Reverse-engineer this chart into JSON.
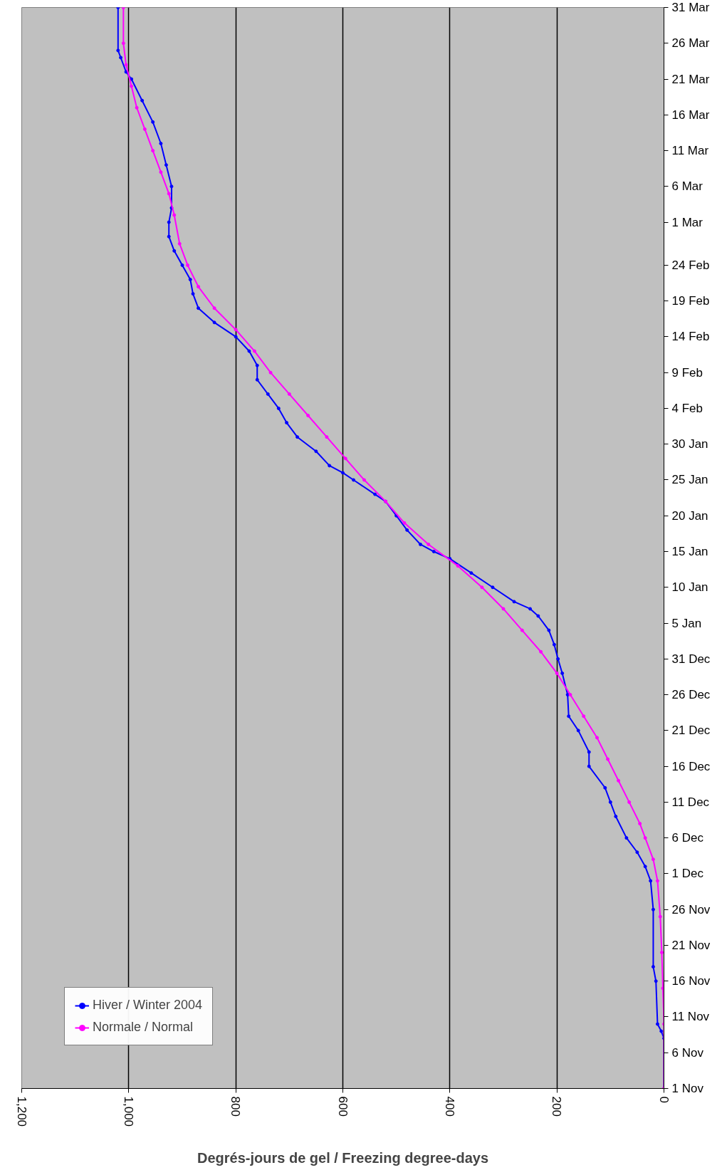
{
  "chart_data": {
    "type": "line",
    "orientation": "horizontal",
    "xlabel": "Degrés-jours de gel / Freezing degree-days",
    "xlim": [
      1200,
      0
    ],
    "xticks": [
      {
        "value": 1200,
        "label": "1,200"
      },
      {
        "value": 1000,
        "label": "1,000"
      },
      800,
      600,
      400,
      200,
      0
    ],
    "ylim": [
      "2003-11-01",
      "2004-03-31"
    ],
    "yticks": [
      {
        "value": "2003-11-01",
        "label": "1 Nov"
      },
      {
        "value": "2003-11-06",
        "label": "6 Nov"
      },
      {
        "value": "2003-11-11",
        "label": "11 Nov"
      },
      {
        "value": "2003-11-16",
        "label": "16 Nov"
      },
      {
        "value": "2003-11-21",
        "label": "21 Nov"
      },
      {
        "value": "2003-11-26",
        "label": "26 Nov"
      },
      {
        "value": "2003-12-01",
        "label": "1 Dec"
      },
      {
        "value": "2003-12-06",
        "label": "6 Dec"
      },
      {
        "value": "2003-12-11",
        "label": "11 Dec"
      },
      {
        "value": "2003-12-16",
        "label": "16 Dec"
      },
      {
        "value": "2003-12-21",
        "label": "21 Dec"
      },
      {
        "value": "2003-12-26",
        "label": "26 Dec"
      },
      {
        "value": "2003-12-31",
        "label": "31 Dec"
      },
      {
        "value": "2004-01-05",
        "label": "5 Jan"
      },
      {
        "value": "2004-01-10",
        "label": "10 Jan"
      },
      {
        "value": "2004-01-15",
        "label": "15 Jan"
      },
      {
        "value": "2004-01-20",
        "label": "20 Jan"
      },
      {
        "value": "2004-01-25",
        "label": "25 Jan"
      },
      {
        "value": "2004-01-30",
        "label": "30 Jan"
      },
      {
        "value": "2004-02-04",
        "label": "4 Feb"
      },
      {
        "value": "2004-02-09",
        "label": "9 Feb"
      },
      {
        "value": "2004-02-14",
        "label": "14 Feb"
      },
      {
        "value": "2004-02-19",
        "label": "19 Feb"
      },
      {
        "value": "2004-02-24",
        "label": "24 Feb"
      },
      {
        "value": "2004-03-01",
        "label": "1 Mar"
      },
      {
        "value": "2004-03-06",
        "label": "6 Mar"
      },
      {
        "value": "2004-03-11",
        "label": "11 Mar"
      },
      {
        "value": "2004-03-16",
        "label": "16 Mar"
      },
      {
        "value": "2004-03-21",
        "label": "21 Mar"
      },
      {
        "value": "2004-03-26",
        "label": "26 Mar"
      },
      {
        "value": "2004-03-31",
        "label": "31 Mar"
      }
    ],
    "grid": "x",
    "legend": "bottom left",
    "marker": "circle",
    "line_style": "solid",
    "series": [
      {
        "name": "Hiver / Winter 2004",
        "color": "#0000ff",
        "x": [
          "2003-11-01",
          "2003-11-08",
          "2003-11-09",
          "2003-11-10",
          "2003-11-16",
          "2003-11-18",
          "2003-11-26",
          "2003-11-30",
          "2003-12-02",
          "2003-12-04",
          "2003-12-06",
          "2003-12-09",
          "2003-12-11",
          "2003-12-13",
          "2003-12-16",
          "2003-12-18",
          "2003-12-21",
          "2003-12-23",
          "2003-12-26",
          "2003-12-29",
          "2003-12-31",
          "2004-01-02",
          "2004-01-04",
          "2004-01-06",
          "2004-01-07",
          "2004-01-08",
          "2004-01-10",
          "2004-01-12",
          "2004-01-14",
          "2004-01-15",
          "2004-01-16",
          "2004-01-18",
          "2004-01-20",
          "2004-01-22",
          "2004-01-23",
          "2004-01-25",
          "2004-01-26",
          "2004-01-27",
          "2004-01-29",
          "2004-01-31",
          "2004-02-02",
          "2004-02-04",
          "2004-02-06",
          "2004-02-08",
          "2004-02-10",
          "2004-02-12",
          "2004-02-14",
          "2004-02-16",
          "2004-02-18",
          "2004-02-20",
          "2004-02-22",
          "2004-02-24",
          "2004-02-26",
          "2004-02-28",
          "2004-03-01",
          "2004-03-03",
          "2004-03-06",
          "2004-03-09",
          "2004-03-12",
          "2004-03-15",
          "2004-03-18",
          "2004-03-21",
          "2004-03-22",
          "2004-03-24",
          "2004-03-25",
          "2004-03-31"
        ],
        "values": [
          0,
          0,
          5,
          12,
          15,
          20,
          20,
          25,
          35,
          50,
          70,
          90,
          100,
          110,
          140,
          140,
          160,
          178,
          180,
          190,
          198,
          205,
          215,
          235,
          250,
          280,
          320,
          360,
          400,
          430,
          455,
          480,
          500,
          520,
          540,
          580,
          600,
          625,
          650,
          685,
          705,
          720,
          740,
          760,
          760,
          775,
          800,
          840,
          870,
          880,
          885,
          900,
          915,
          925,
          925,
          920,
          920,
          930,
          940,
          955,
          975,
          995,
          1005,
          1015,
          1020,
          1020
        ]
      },
      {
        "name": "Normale / Normal",
        "color": "#ff00ff",
        "x": [
          "2003-11-01",
          "2003-11-10",
          "2003-11-15",
          "2003-11-20",
          "2003-11-25",
          "2003-11-30",
          "2003-12-03",
          "2003-12-06",
          "2003-12-08",
          "2003-12-11",
          "2003-12-14",
          "2003-12-17",
          "2003-12-20",
          "2003-12-23",
          "2003-12-26",
          "2003-12-29",
          "2004-01-01",
          "2004-01-04",
          "2004-01-07",
          "2004-01-10",
          "2004-01-13",
          "2004-01-16",
          "2004-01-19",
          "2004-01-22",
          "2004-01-25",
          "2004-01-28",
          "2004-01-31",
          "2004-02-03",
          "2004-02-06",
          "2004-02-09",
          "2004-02-12",
          "2004-02-15",
          "2004-02-18",
          "2004-02-21",
          "2004-02-24",
          "2004-02-27",
          "2004-03-02",
          "2004-03-05",
          "2004-03-08",
          "2004-03-11",
          "2004-03-14",
          "2004-03-17",
          "2004-03-20",
          "2004-03-23",
          "2004-03-26",
          "2004-03-31"
        ],
        "values": [
          0,
          0,
          2,
          4,
          7,
          12,
          20,
          35,
          45,
          65,
          85,
          105,
          125,
          150,
          175,
          200,
          230,
          265,
          300,
          340,
          385,
          440,
          485,
          520,
          560,
          595,
          630,
          665,
          700,
          735,
          765,
          800,
          840,
          870,
          890,
          905,
          915,
          925,
          940,
          955,
          970,
          985,
          995,
          1005,
          1010,
          1010
        ]
      }
    ]
  }
}
